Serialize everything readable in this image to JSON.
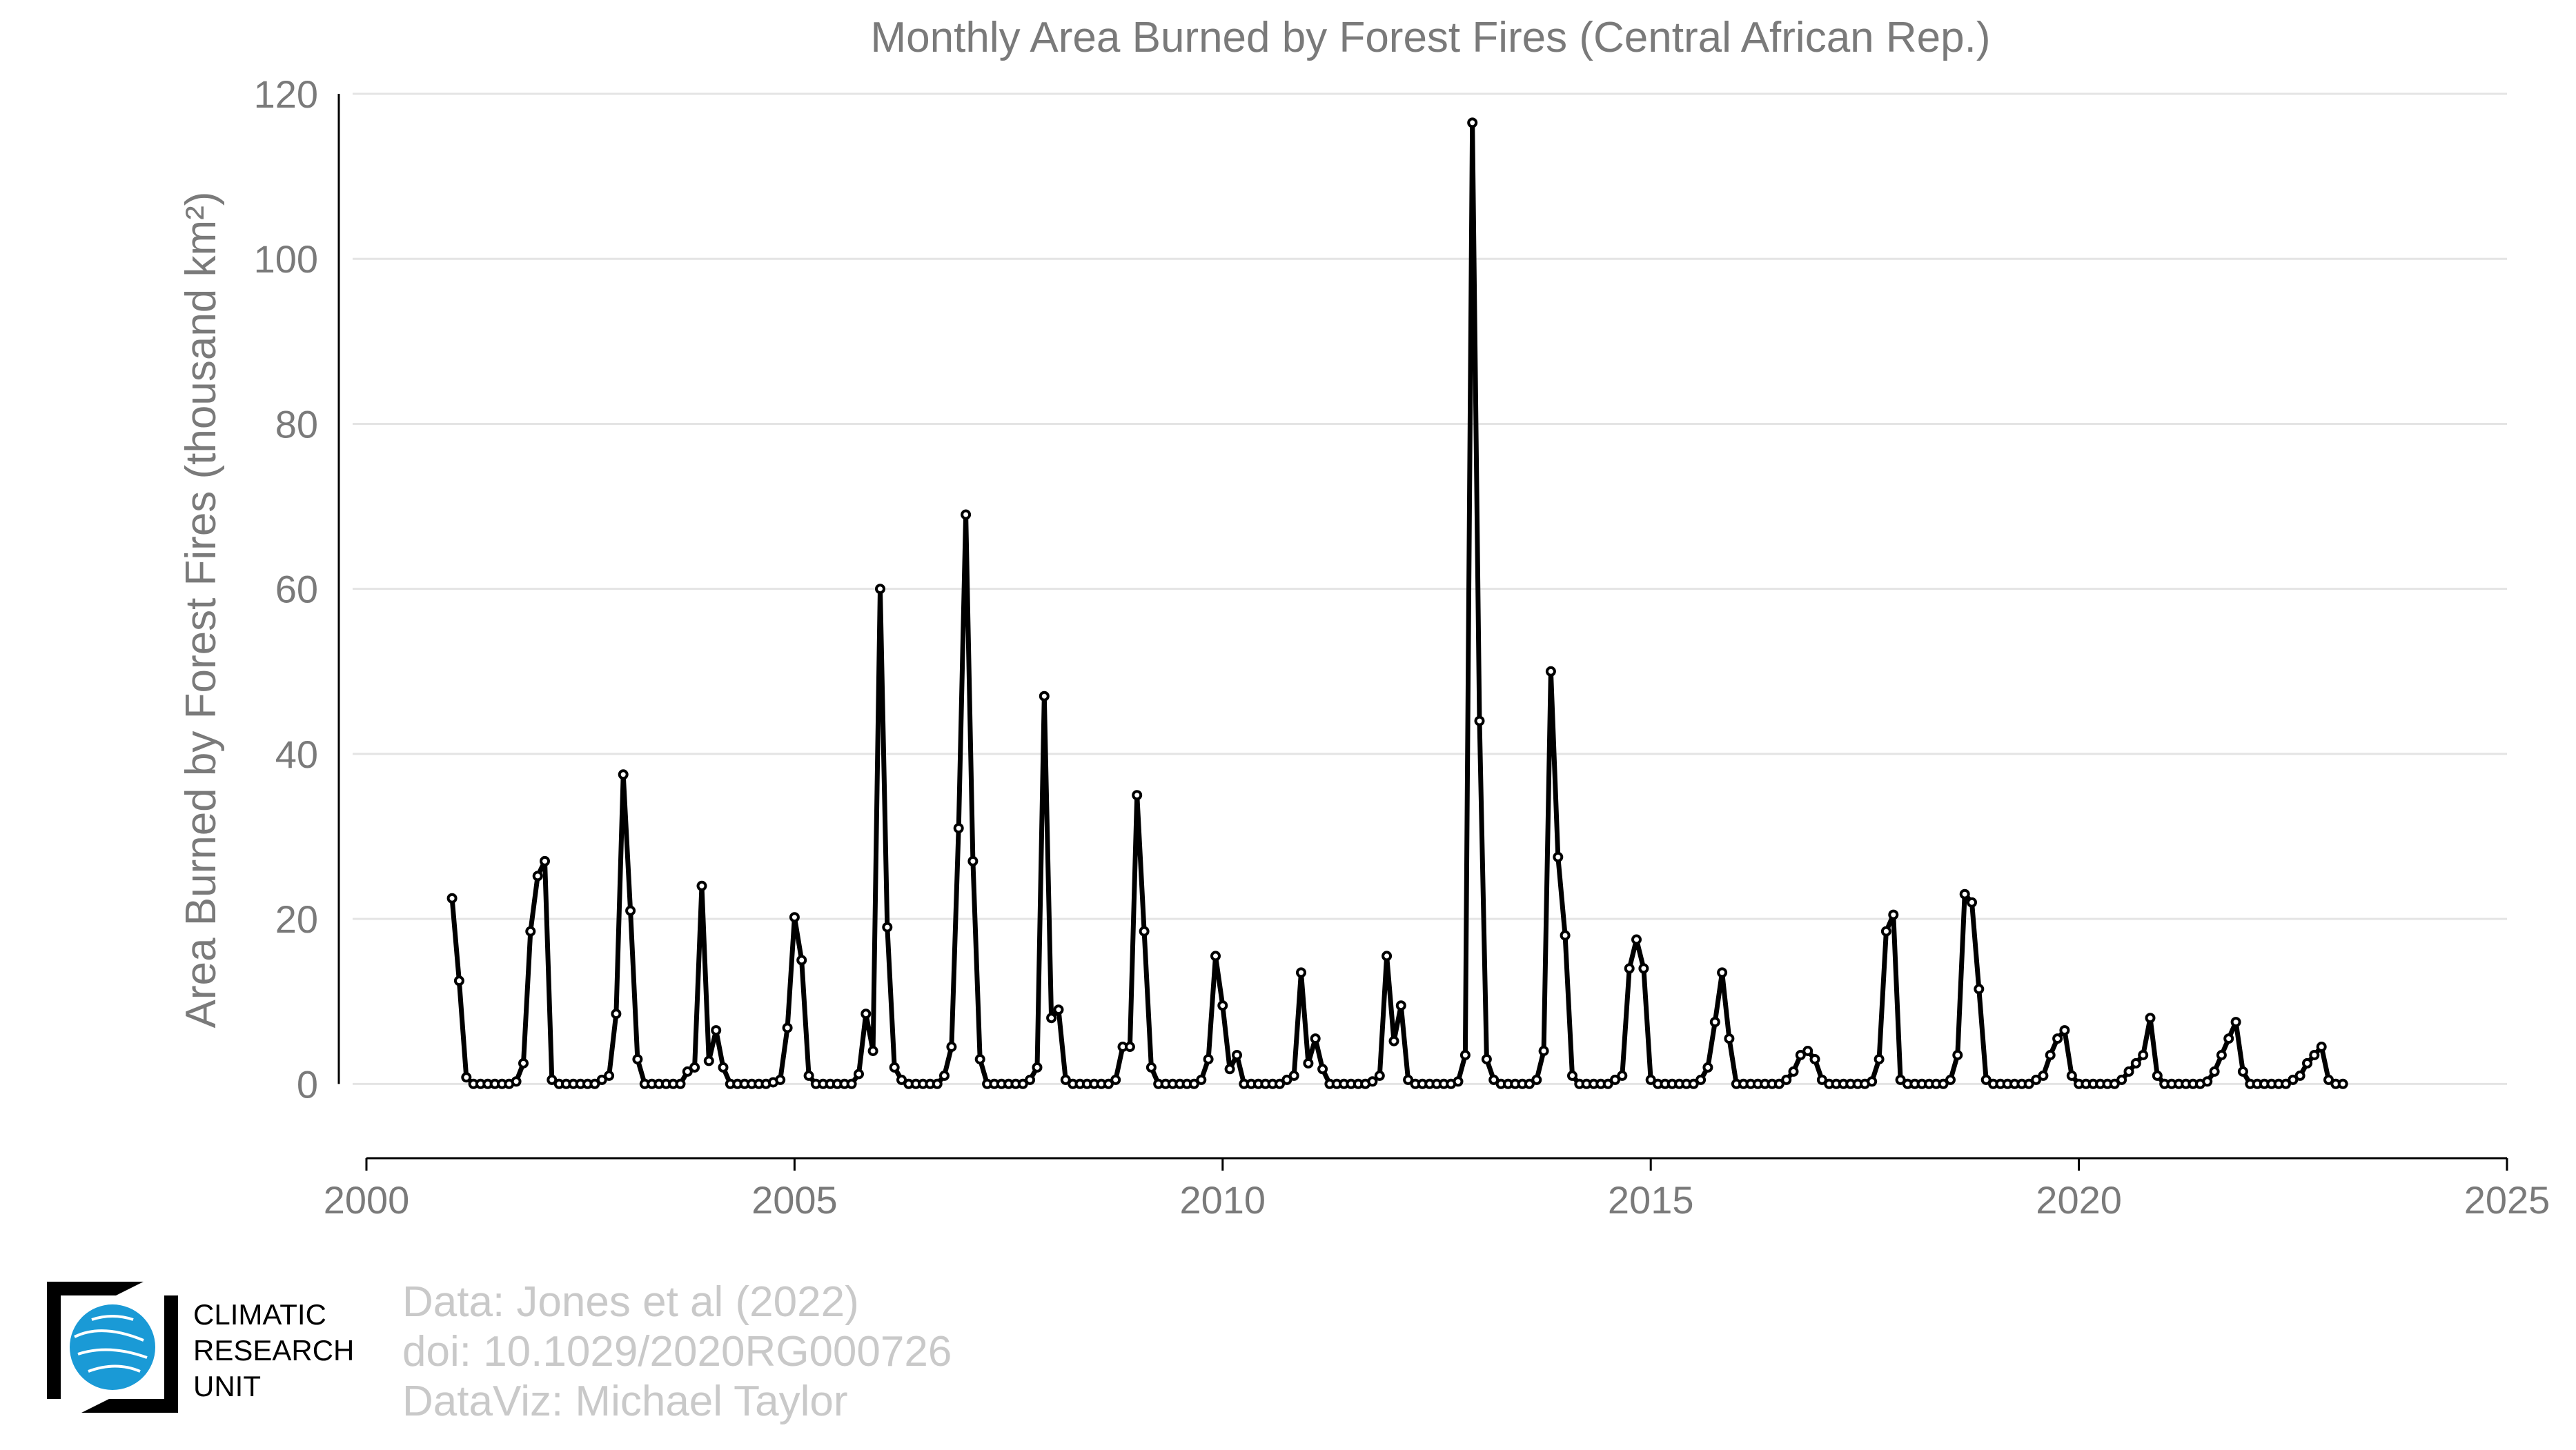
{
  "chart_data": {
    "type": "line",
    "title": "Monthly Area Burned by Forest Fires (Central African Rep.)",
    "xlabel": "",
    "ylabel": "Area Burned by Forest Fires (thousand km²)",
    "xlim": [
      2000,
      2025
    ],
    "ylim": [
      -9,
      120
    ],
    "xticks": [
      "2000",
      "2005",
      "2010",
      "2015",
      "2020",
      "2025"
    ],
    "yticks": [
      "0",
      "20",
      "40",
      "60",
      "80",
      "100",
      "120"
    ],
    "grid": true,
    "legend": "none",
    "series": [
      {
        "x_start": "2001-01",
        "values": [
          22.5,
          12.5,
          0.8,
          0,
          0,
          0,
          0,
          0,
          0,
          0.3,
          2.5,
          18.5,
          25.2,
          27.0,
          0.5,
          0,
          0,
          0,
          0,
          0,
          0,
          0.5,
          1.0,
          8.5,
          37.5,
          21.0,
          3.0,
          0,
          0,
          0,
          0,
          0,
          0,
          1.5,
          2.0,
          24.0,
          2.8,
          6.5,
          2.0,
          0,
          0,
          0,
          0,
          0,
          0,
          0.2,
          0.5,
          6.8,
          20.2,
          15.0,
          1.0,
          0,
          0,
          0,
          0,
          0,
          0,
          1.2,
          8.5,
          4.0,
          60.0,
          19.0,
          2.0,
          0.5,
          0,
          0,
          0,
          0,
          0,
          1.0,
          4.5,
          31.0,
          69.0,
          27.0,
          3.0,
          0,
          0,
          0,
          0,
          0,
          0,
          0.5,
          2.0,
          47.0,
          8.0,
          9.0,
          0.5,
          0,
          0,
          0,
          0,
          0,
          0,
          0.5,
          4.5,
          4.5,
          35.0,
          18.5,
          2.0,
          0,
          0,
          0,
          0,
          0,
          0,
          0.5,
          3.0,
          15.5,
          9.5,
          1.8,
          3.5,
          0,
          0,
          0,
          0,
          0,
          0,
          0.5,
          1.0,
          13.5,
          2.5,
          5.5,
          1.8,
          0,
          0,
          0,
          0,
          0,
          0,
          0.3,
          1.0,
          15.5,
          5.2,
          9.5,
          0.5,
          0,
          0,
          0,
          0,
          0,
          0,
          0.3,
          3.5,
          116.5,
          44.0,
          3.0,
          0.5,
          0,
          0,
          0,
          0,
          0,
          0.5,
          4.0,
          50.0,
          27.5,
          18.0,
          1.0,
          0,
          0,
          0,
          0,
          0,
          0.5,
          1.0,
          14.0,
          17.5,
          14.0,
          0.5,
          0,
          0,
          0,
          0,
          0,
          0,
          0.5,
          2.0,
          7.5,
          13.5,
          5.5,
          0,
          0,
          0,
          0,
          0,
          0,
          0,
          0.5,
          1.5,
          3.5,
          4.0,
          3.0,
          0.5,
          0,
          0,
          0,
          0,
          0,
          0,
          0.3,
          3.0,
          18.5,
          20.5,
          0.5,
          0,
          0,
          0,
          0,
          0,
          0,
          0.5,
          3.5,
          23.0,
          22.0,
          11.5,
          0.5,
          0,
          0,
          0,
          0,
          0,
          0,
          0.5,
          1.0,
          3.5,
          5.5,
          6.5,
          1.0,
          0,
          0,
          0,
          0,
          0,
          0,
          0.5,
          1.5,
          2.5,
          3.5,
          8.0,
          1.0,
          0,
          0,
          0,
          0,
          0,
          0,
          0.3,
          1.5,
          3.5,
          5.5,
          7.5,
          1.5,
          0,
          0,
          0,
          0,
          0,
          0,
          0.5,
          1.0,
          2.5,
          3.5,
          4.5,
          0.5,
          0,
          0
        ]
      }
    ]
  },
  "credits": {
    "line1": "Data: Jones et al (2022)",
    "line2": "doi: 10.1029/2020RG000726",
    "line3": "DataViz: Michael Taylor"
  },
  "logo": {
    "line1": "CLIMATIC",
    "line2": "RESEARCH",
    "line3": "UNIT",
    "icon": "globe-logo",
    "color": "#1a9ad6"
  }
}
